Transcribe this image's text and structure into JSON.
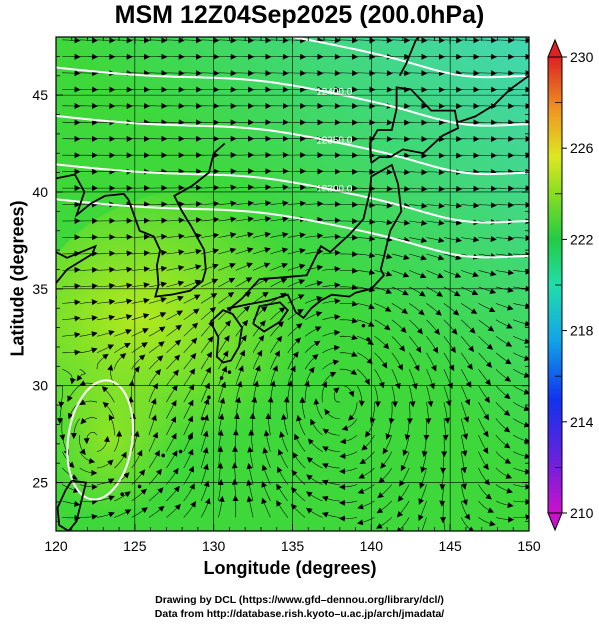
{
  "chart_data": {
    "type": "vector-field",
    "title": "MSM 12Z04Sep2025 (200.0hPa)",
    "xlabel": "Longitude (degrees)",
    "ylabel": "Latitude  (degrees)",
    "xlim": [
      120,
      150
    ],
    "ylim": [
      22.5,
      48
    ],
    "xticks": [
      "120",
      "125",
      "130",
      "135",
      "140",
      "145",
      "150"
    ],
    "yticks": [
      "25",
      "30",
      "35",
      "40",
      "45"
    ],
    "colorbar": {
      "min": 210,
      "max": 230,
      "ticks": [
        "210",
        "214",
        "218",
        "222",
        "226",
        "230"
      ]
    },
    "contours": [
      {
        "label": "12300.0",
        "lat_at_138": 39.8
      },
      {
        "label": "12350.0",
        "lat_at_138": 42.3
      },
      {
        "label": "12400.0",
        "lat_at_138": 44.8
      }
    ],
    "vortices": [
      {
        "name": "anticyclone",
        "lon": 138,
        "lat": 29.5
      },
      {
        "name": "cyclone",
        "lon": 122.5,
        "lat": 27
      }
    ]
  },
  "credits": {
    "line1": "Drawing by DCL (https://www.gfd–dennou.org/library/dcl/)",
    "line2": "Data from http://database.rish.kyoto–u.ac.jp/arch/jmadata/"
  },
  "colors": {
    "field_green": "#3ed83a",
    "field_yellow": "#a8e61e",
    "field_cyan": "#3ccfa6",
    "contour": "#ffffff",
    "coast": "#000000"
  }
}
